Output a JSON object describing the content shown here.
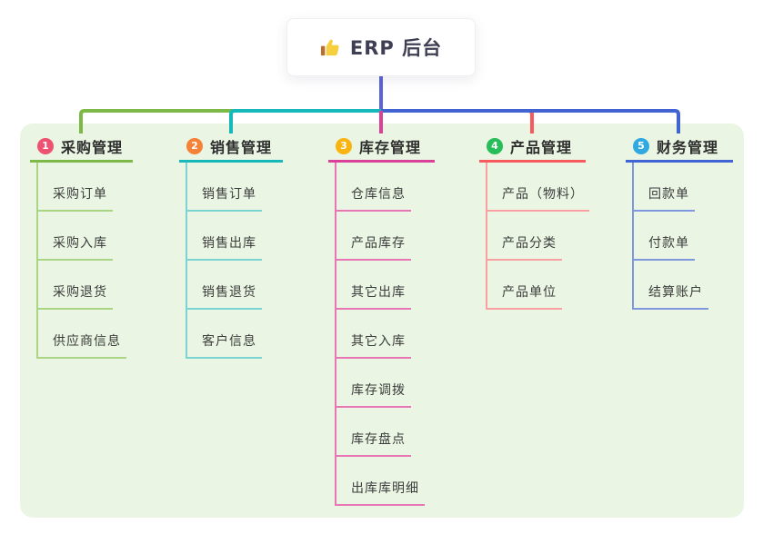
{
  "root": {
    "title": "ERP 后台",
    "icon": "thumbs-up-icon"
  },
  "connector_colors": {
    "stem": "#5a64d8"
  },
  "branches": [
    {
      "num": "1",
      "label": "采购管理",
      "badge_color": "#ef5271",
      "line_color": "#7cb946",
      "child_line_color": "#a9d585",
      "children": [
        "采购订单",
        "采购入库",
        "采购退货",
        "供应商信息"
      ]
    },
    {
      "num": "2",
      "label": "销售管理",
      "badge_color": "#f58236",
      "line_color": "#16b8ba",
      "child_line_color": "#7bd4d2",
      "children": [
        "销售订单",
        "销售出库",
        "销售退货",
        "客户信息"
      ]
    },
    {
      "num": "3",
      "label": "库存管理",
      "badge_color": "#f9b410",
      "line_color": "#d94097",
      "child_line_color": "#e875b4",
      "children": [
        "仓库信息",
        "产品库存",
        "其它出库",
        "其它入库",
        "库存调拨",
        "库存盘点",
        "出库库明细"
      ]
    },
    {
      "num": "4",
      "label": "产品管理",
      "badge_color": "#27bd59",
      "line_color": "#f75a5c",
      "child_line_color": "#f9a0a2",
      "children": [
        "产品（物料）",
        "产品分类",
        "产品单位"
      ]
    },
    {
      "num": "5",
      "label": "财务管理",
      "badge_color": "#30a8e0",
      "line_color": "#4164d2",
      "child_line_color": "#7e97de",
      "children": [
        "回款单",
        "付款单",
        "结算账户"
      ]
    }
  ]
}
